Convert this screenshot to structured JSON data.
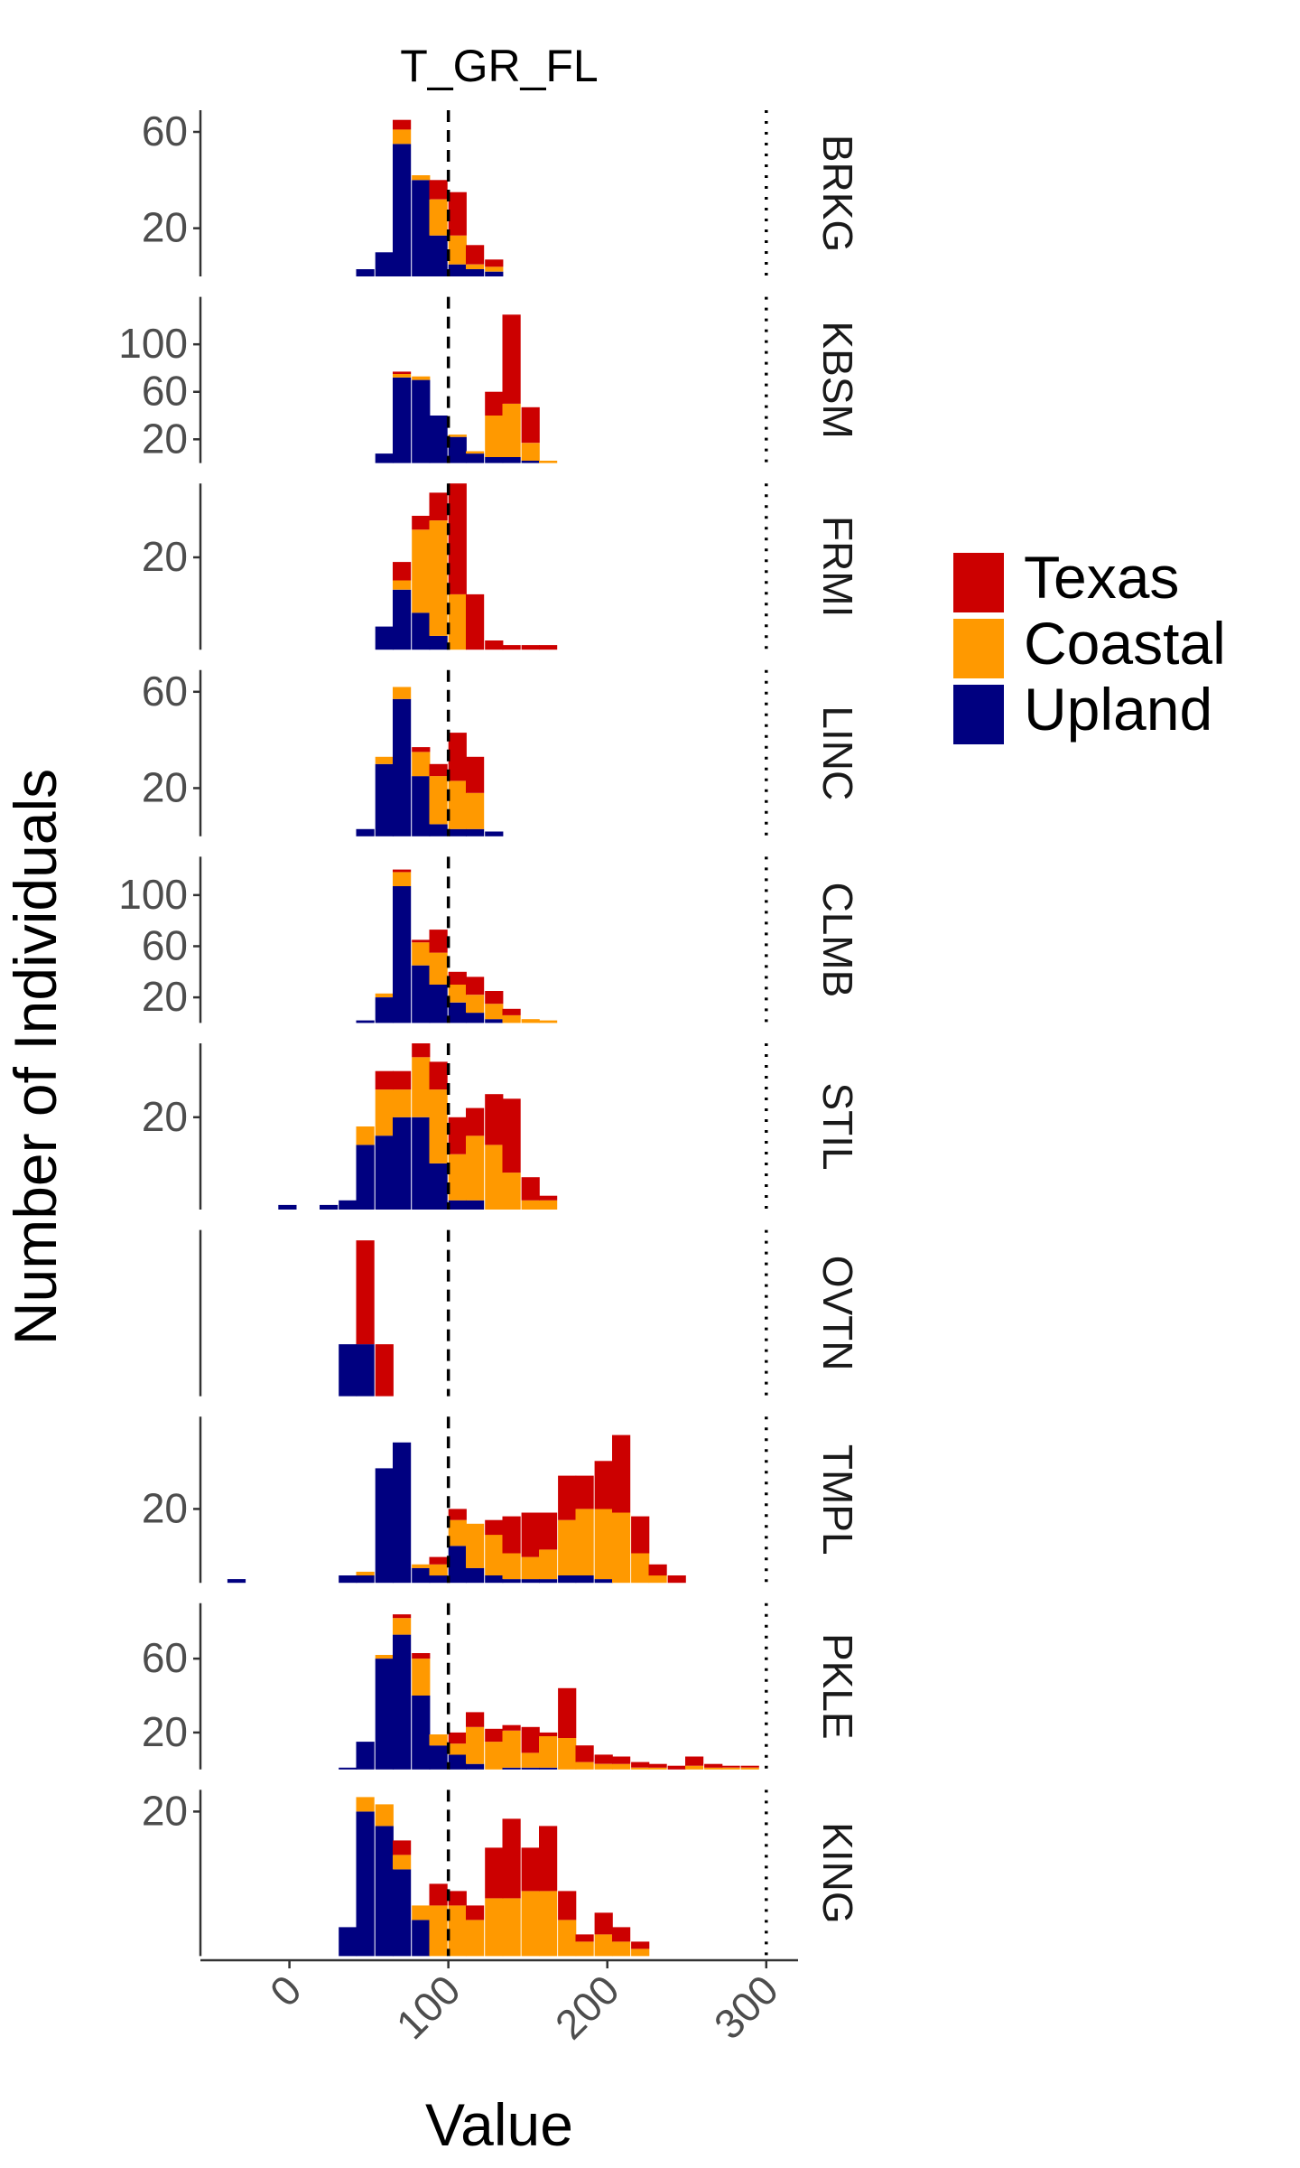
{
  "chart_data": {
    "type": "histogram-facets",
    "title": "T_GR_FL",
    "xlabel": "Value",
    "ylabel": "Number of Individuals",
    "xlim": [
      -56,
      320
    ],
    "x_ticks": [
      0,
      100,
      200,
      300
    ],
    "reference_lines": [
      {
        "x": 100,
        "style": "dashed"
      },
      {
        "x": 300,
        "style": "dotted"
      }
    ],
    "bin_width": 11.5,
    "legend": {
      "position": "right",
      "entries": [
        {
          "name": "Texas",
          "color": "#cc0000"
        },
        {
          "name": "Coastal",
          "color": "#ff9900"
        },
        {
          "name": "Upland",
          "color": "#000080"
        }
      ]
    },
    "facets": [
      {
        "name": "BRKG",
        "ymax": 69,
        "y_ticks": [
          20,
          60
        ],
        "bins": [
          {
            "x0": 42,
            "upland": 3,
            "coastal": 0,
            "texas": 0
          },
          {
            "x0": 54,
            "upland": 10,
            "coastal": 0,
            "texas": 0
          },
          {
            "x0": 65,
            "upland": 55,
            "coastal": 6,
            "texas": 4
          },
          {
            "x0": 77,
            "upland": 40,
            "coastal": 2,
            "texas": 0
          },
          {
            "x0": 88,
            "upland": 17,
            "coastal": 15,
            "texas": 8
          },
          {
            "x0": 100,
            "upland": 5,
            "coastal": 12,
            "texas": 18
          },
          {
            "x0": 111,
            "upland": 3,
            "coastal": 2,
            "texas": 8
          },
          {
            "x0": 123,
            "upland": 2,
            "coastal": 2,
            "texas": 3
          }
        ]
      },
      {
        "name": "KBSM",
        "ymax": 140,
        "y_ticks": [
          20,
          60,
          100
        ],
        "bins": [
          {
            "x0": 54,
            "upland": 8,
            "coastal": 0,
            "texas": 0
          },
          {
            "x0": 65,
            "upland": 72,
            "coastal": 3,
            "texas": 2
          },
          {
            "x0": 77,
            "upland": 70,
            "coastal": 3,
            "texas": 0
          },
          {
            "x0": 88,
            "upland": 40,
            "coastal": 0,
            "texas": 0
          },
          {
            "x0": 100,
            "upland": 22,
            "coastal": 2,
            "texas": 0
          },
          {
            "x0": 111,
            "upland": 8,
            "coastal": 2,
            "texas": 0
          },
          {
            "x0": 123,
            "upland": 5,
            "coastal": 35,
            "texas": 20
          },
          {
            "x0": 134,
            "upland": 5,
            "coastal": 45,
            "texas": 75
          },
          {
            "x0": 146,
            "upland": 2,
            "coastal": 15,
            "texas": 30
          },
          {
            "x0": 157,
            "upland": 0,
            "coastal": 2,
            "texas": 0
          }
        ]
      },
      {
        "name": "FRMI",
        "ymax": 36,
        "y_ticks": [
          20
        ],
        "bins": [
          {
            "x0": 54,
            "upland": 5,
            "coastal": 0,
            "texas": 0
          },
          {
            "x0": 65,
            "upland": 13,
            "coastal": 2,
            "texas": 4
          },
          {
            "x0": 77,
            "upland": 8,
            "coastal": 18,
            "texas": 3
          },
          {
            "x0": 88,
            "upland": 3,
            "coastal": 25,
            "texas": 6
          },
          {
            "x0": 100,
            "upland": 0,
            "coastal": 12,
            "texas": 24
          },
          {
            "x0": 111,
            "upland": 0,
            "coastal": 0,
            "texas": 12
          },
          {
            "x0": 123,
            "upland": 0,
            "coastal": 0,
            "texas": 2
          },
          {
            "x0": 134,
            "upland": 0,
            "coastal": 0,
            "texas": 1
          },
          {
            "x0": 146,
            "upland": 0,
            "coastal": 0,
            "texas": 1
          },
          {
            "x0": 157,
            "upland": 0,
            "coastal": 0,
            "texas": 1
          }
        ]
      },
      {
        "name": "LINC",
        "ymax": 69,
        "y_ticks": [
          20,
          60
        ],
        "bins": [
          {
            "x0": 42,
            "upland": 3,
            "coastal": 0,
            "texas": 0
          },
          {
            "x0": 54,
            "upland": 30,
            "coastal": 3,
            "texas": 0
          },
          {
            "x0": 65,
            "upland": 57,
            "coastal": 5,
            "texas": 0
          },
          {
            "x0": 77,
            "upland": 25,
            "coastal": 10,
            "texas": 2
          },
          {
            "x0": 88,
            "upland": 5,
            "coastal": 20,
            "texas": 5
          },
          {
            "x0": 100,
            "upland": 3,
            "coastal": 20,
            "texas": 20
          },
          {
            "x0": 111,
            "upland": 3,
            "coastal": 15,
            "texas": 15
          },
          {
            "x0": 123,
            "upland": 2,
            "coastal": 0,
            "texas": 0
          }
        ]
      },
      {
        "name": "CLMB",
        "ymax": 130,
        "y_ticks": [
          20,
          60,
          100
        ],
        "bins": [
          {
            "x0": 42,
            "upland": 2,
            "coastal": 0,
            "texas": 0
          },
          {
            "x0": 54,
            "upland": 20,
            "coastal": 3,
            "texas": 0
          },
          {
            "x0": 65,
            "upland": 107,
            "coastal": 11,
            "texas": 2
          },
          {
            "x0": 77,
            "upland": 45,
            "coastal": 18,
            "texas": 2
          },
          {
            "x0": 88,
            "upland": 30,
            "coastal": 25,
            "texas": 18
          },
          {
            "x0": 100,
            "upland": 16,
            "coastal": 14,
            "texas": 10
          },
          {
            "x0": 111,
            "upland": 8,
            "coastal": 14,
            "texas": 14
          },
          {
            "x0": 123,
            "upland": 3,
            "coastal": 12,
            "texas": 10
          },
          {
            "x0": 134,
            "upland": 0,
            "coastal": 6,
            "texas": 5
          },
          {
            "x0": 146,
            "upland": 0,
            "coastal": 3,
            "texas": 0
          },
          {
            "x0": 157,
            "upland": 0,
            "coastal": 2,
            "texas": 0
          }
        ]
      },
      {
        "name": "STIL",
        "ymax": 36,
        "y_ticks": [
          20
        ],
        "bins": [
          {
            "x0": -7,
            "upland": 1,
            "coastal": 0,
            "texas": 0
          },
          {
            "x0": 19,
            "upland": 1,
            "coastal": 0,
            "texas": 0
          },
          {
            "x0": 31,
            "upland": 2,
            "coastal": 0,
            "texas": 0
          },
          {
            "x0": 42,
            "upland": 14,
            "coastal": 4,
            "texas": 0
          },
          {
            "x0": 54,
            "upland": 16,
            "coastal": 10,
            "texas": 4
          },
          {
            "x0": 65,
            "upland": 20,
            "coastal": 6,
            "texas": 4
          },
          {
            "x0": 77,
            "upland": 20,
            "coastal": 13,
            "texas": 3
          },
          {
            "x0": 88,
            "upland": 10,
            "coastal": 16,
            "texas": 6
          },
          {
            "x0": 100,
            "upland": 2,
            "coastal": 10,
            "texas": 8
          },
          {
            "x0": 111,
            "upland": 2,
            "coastal": 14,
            "texas": 6
          },
          {
            "x0": 123,
            "upland": 0,
            "coastal": 14,
            "texas": 11
          },
          {
            "x0": 134,
            "upland": 0,
            "coastal": 8,
            "texas": 16
          },
          {
            "x0": 146,
            "upland": 0,
            "coastal": 2,
            "texas": 5
          },
          {
            "x0": 157,
            "upland": 0,
            "coastal": 2,
            "texas": 1
          }
        ]
      },
      {
        "name": "OVTN",
        "ymax": 3.2,
        "y_ticks": [],
        "bins": [
          {
            "x0": 31,
            "upland": 1,
            "coastal": 0,
            "texas": 0
          },
          {
            "x0": 42,
            "upland": 1,
            "coastal": 0,
            "texas": 2
          },
          {
            "x0": 54,
            "upland": 0,
            "coastal": 0,
            "texas": 1
          }
        ]
      },
      {
        "name": "TMPL",
        "ymax": 45,
        "y_ticks": [
          20
        ],
        "bins": [
          {
            "x0": -39,
            "upland": 1,
            "coastal": 0,
            "texas": 0
          },
          {
            "x0": 31,
            "upland": 2,
            "coastal": 0,
            "texas": 0
          },
          {
            "x0": 42,
            "upland": 2,
            "coastal": 1,
            "texas": 0
          },
          {
            "x0": 54,
            "upland": 31,
            "coastal": 0,
            "texas": 0
          },
          {
            "x0": 65,
            "upland": 38,
            "coastal": 0,
            "texas": 0
          },
          {
            "x0": 77,
            "upland": 4,
            "coastal": 1,
            "texas": 0
          },
          {
            "x0": 88,
            "upland": 2,
            "coastal": 3,
            "texas": 2
          },
          {
            "x0": 100,
            "upland": 10,
            "coastal": 7,
            "texas": 3
          },
          {
            "x0": 111,
            "upland": 4,
            "coastal": 12,
            "texas": 0
          },
          {
            "x0": 123,
            "upland": 2,
            "coastal": 11,
            "texas": 4
          },
          {
            "x0": 134,
            "upland": 1,
            "coastal": 7,
            "texas": 10
          },
          {
            "x0": 146,
            "upland": 1,
            "coastal": 6,
            "texas": 12
          },
          {
            "x0": 157,
            "upland": 1,
            "coastal": 8,
            "texas": 10
          },
          {
            "x0": 169,
            "upland": 2,
            "coastal": 15,
            "texas": 12
          },
          {
            "x0": 180,
            "upland": 2,
            "coastal": 18,
            "texas": 9
          },
          {
            "x0": 192,
            "upland": 1,
            "coastal": 19,
            "texas": 13
          },
          {
            "x0": 203,
            "upland": 0,
            "coastal": 19,
            "texas": 21
          },
          {
            "x0": 215,
            "upland": 0,
            "coastal": 8,
            "texas": 10
          },
          {
            "x0": 226,
            "upland": 0,
            "coastal": 2,
            "texas": 3
          },
          {
            "x0": 238,
            "upland": 0,
            "coastal": 0,
            "texas": 2
          }
        ]
      },
      {
        "name": "PKLE",
        "ymax": 90,
        "y_ticks": [
          20,
          60
        ],
        "bins": [
          {
            "x0": 31,
            "upland": 1,
            "coastal": 0,
            "texas": 0
          },
          {
            "x0": 42,
            "upland": 15,
            "coastal": 0,
            "texas": 0
          },
          {
            "x0": 54,
            "upland": 60,
            "coastal": 2,
            "texas": 0
          },
          {
            "x0": 65,
            "upland": 73,
            "coastal": 9,
            "texas": 2
          },
          {
            "x0": 77,
            "upland": 40,
            "coastal": 20,
            "texas": 3
          },
          {
            "x0": 88,
            "upland": 13,
            "coastal": 6,
            "texas": 0
          },
          {
            "x0": 100,
            "upland": 8,
            "coastal": 6,
            "texas": 6
          },
          {
            "x0": 111,
            "upland": 3,
            "coastal": 20,
            "texas": 8
          },
          {
            "x0": 123,
            "upland": 0,
            "coastal": 15,
            "texas": 7
          },
          {
            "x0": 134,
            "upland": 1,
            "coastal": 20,
            "texas": 3
          },
          {
            "x0": 146,
            "upland": 1,
            "coastal": 8,
            "texas": 14
          },
          {
            "x0": 157,
            "upland": 1,
            "coastal": 17,
            "texas": 2
          },
          {
            "x0": 169,
            "upland": 0,
            "coastal": 17,
            "texas": 27
          },
          {
            "x0": 180,
            "upland": 0,
            "coastal": 4,
            "texas": 9
          },
          {
            "x0": 192,
            "upland": 0,
            "coastal": 3,
            "texas": 5
          },
          {
            "x0": 203,
            "upland": 0,
            "coastal": 3,
            "texas": 4
          },
          {
            "x0": 215,
            "upland": 0,
            "coastal": 1,
            "texas": 3
          },
          {
            "x0": 226,
            "upland": 0,
            "coastal": 1,
            "texas": 2
          },
          {
            "x0": 238,
            "upland": 0,
            "coastal": 0,
            "texas": 2
          },
          {
            "x0": 249,
            "upland": 0,
            "coastal": 2,
            "texas": 5
          },
          {
            "x0": 261,
            "upland": 0,
            "coastal": 1,
            "texas": 2
          },
          {
            "x0": 272,
            "upland": 0,
            "coastal": 1,
            "texas": 1
          },
          {
            "x0": 284,
            "upland": 0,
            "coastal": 1,
            "texas": 1
          }
        ]
      },
      {
        "name": "KING",
        "ymax": 23,
        "y_ticks": [
          20
        ],
        "bins": [
          {
            "x0": 31,
            "upland": 4,
            "coastal": 0,
            "texas": 0
          },
          {
            "x0": 42,
            "upland": 20,
            "coastal": 2,
            "texas": 0
          },
          {
            "x0": 54,
            "upland": 18,
            "coastal": 3,
            "texas": 0
          },
          {
            "x0": 65,
            "upland": 12,
            "coastal": 2,
            "texas": 2
          },
          {
            "x0": 77,
            "upland": 5,
            "coastal": 2,
            "texas": 0
          },
          {
            "x0": 88,
            "upland": 0,
            "coastal": 7,
            "texas": 3
          },
          {
            "x0": 100,
            "upland": 0,
            "coastal": 7,
            "texas": 2
          },
          {
            "x0": 111,
            "upland": 0,
            "coastal": 5,
            "texas": 2
          },
          {
            "x0": 123,
            "upland": 0,
            "coastal": 8,
            "texas": 7
          },
          {
            "x0": 134,
            "upland": 0,
            "coastal": 8,
            "texas": 11
          },
          {
            "x0": 146,
            "upland": 0,
            "coastal": 9,
            "texas": 6
          },
          {
            "x0": 157,
            "upland": 0,
            "coastal": 9,
            "texas": 9
          },
          {
            "x0": 169,
            "upland": 0,
            "coastal": 5,
            "texas": 4
          },
          {
            "x0": 180,
            "upland": 0,
            "coastal": 2,
            "texas": 1
          },
          {
            "x0": 192,
            "upland": 0,
            "coastal": 3,
            "texas": 3
          },
          {
            "x0": 203,
            "upland": 0,
            "coastal": 2,
            "texas": 2
          },
          {
            "x0": 215,
            "upland": 0,
            "coastal": 1,
            "texas": 1
          }
        ]
      }
    ]
  }
}
